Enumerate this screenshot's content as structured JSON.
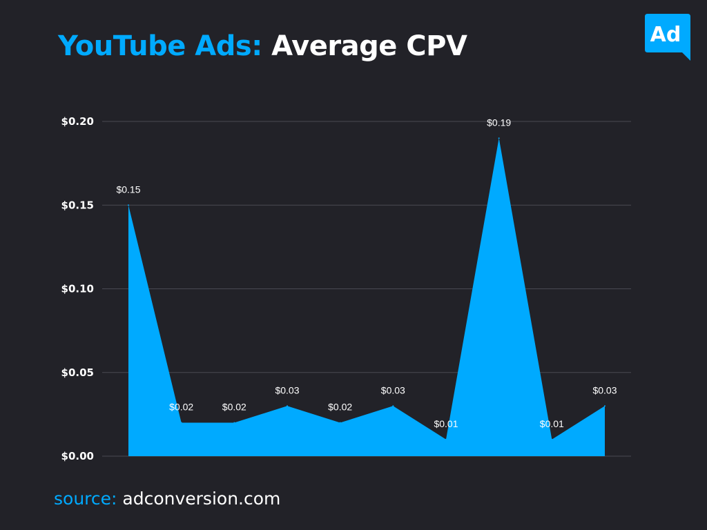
{
  "title": {
    "accent": "YouTube Ads:",
    "main": "Average CPV"
  },
  "logo": {
    "text": "Ad",
    "color": "#00aaff",
    "icon": "speech-bubble-icon"
  },
  "source": {
    "label": "source:",
    "value": "adconversion.com"
  },
  "colors": {
    "background": "#222228",
    "accent": "#00aaff",
    "grid": "#4a4a52",
    "text": "#ffffff"
  },
  "chart_data": {
    "type": "area",
    "x": [
      1,
      2,
      3,
      4,
      5,
      6,
      7,
      8,
      9,
      10
    ],
    "values": [
      0.15,
      0.02,
      0.02,
      0.03,
      0.02,
      0.03,
      0.01,
      0.19,
      0.01,
      0.03
    ],
    "data_labels": [
      "$0.15",
      "$0.02",
      "$0.02",
      "$0.03",
      "$0.02",
      "$0.03",
      "$0.01",
      "$0.19",
      "$0.01",
      "$0.03"
    ],
    "yticks": [
      0,
      0.05,
      0.1,
      0.15,
      0.2
    ],
    "ytick_labels": [
      "$0.00",
      "$0.05",
      "$0.10",
      "$0.15",
      "$0.20"
    ],
    "ylim": [
      0,
      0.2
    ],
    "xlabel": "",
    "ylabel": "",
    "grid": true,
    "legend": "none"
  }
}
